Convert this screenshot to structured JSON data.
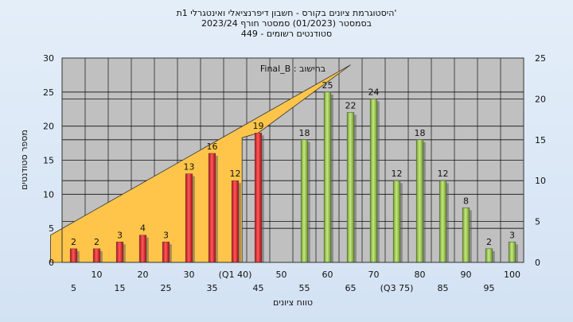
{
  "titles": {
    "line1": "היסטוגרמת ציונים בקורס - חשבון דיפרנציאלי ואינטגרלי 1ת'",
    "line2": "בסמסטר  (01/2023)  סמסטר חורף  2023/24",
    "line3": "סטודנטים רשומים - 449"
  },
  "colors": {
    "red_bar": "#e8323a",
    "green_bar": "#9acd4b",
    "curve_fill": "#ffc54a",
    "plot_bg": "#c0c0c0"
  },
  "chart_data": {
    "type": "bar",
    "annotation": "Final_B : בחישוב",
    "xlabel": "טווח ציונים",
    "ylabel": "מספר סטודנטים",
    "ylim": [
      0,
      30
    ],
    "y_ticks": [
      "0",
      "5",
      "10",
      "15",
      "20",
      "25",
      "30"
    ],
    "y2lim": [
      0,
      25
    ],
    "y2_ticks": [
      "0",
      "5",
      "10",
      "15",
      "20",
      "25"
    ],
    "grid": true,
    "categories": [
      "5",
      "10",
      "15",
      "20",
      "25",
      "30",
      "35",
      "(Q1 40)",
      "45",
      "50",
      "55",
      "60",
      "65",
      "70",
      "(Q3 75)",
      "80",
      "85",
      "90",
      "95",
      "100"
    ],
    "values": [
      2,
      2,
      3,
      4,
      3,
      13,
      16,
      12,
      19,
      null,
      18,
      25,
      22,
      24,
      12,
      18,
      12,
      8,
      2,
      3
    ],
    "bar_colors": [
      "red",
      "red",
      "red",
      "red",
      "red",
      "red",
      "red",
      "red",
      "red",
      null,
      "green",
      "green",
      "green",
      "green",
      "green",
      "green",
      "green",
      "green",
      "green",
      "green"
    ],
    "curve": {
      "x": [
        "45",
        "65",
        "75"
      ],
      "y": [
        19,
        29,
        4
      ]
    }
  }
}
